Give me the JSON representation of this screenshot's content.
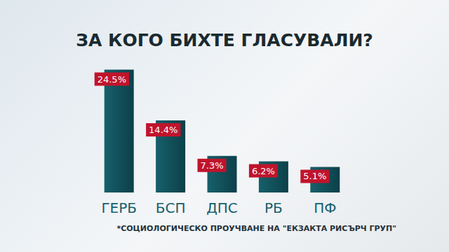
{
  "chart_data": {
    "type": "bar",
    "title": "ЗА КОГО БИХТЕ ГЛАСУВАЛИ?",
    "annotation": "*СОЦИОЛОГИЧЕСКО ПРОУЧВАНЕ НА \"ЕКЗАКТА РИСЪРЧ ГРУП\"",
    "categories": [
      "ГЕРБ",
      "БСП",
      "ДПС",
      "РБ",
      "ПФ"
    ],
    "values": [
      24.5,
      14.4,
      7.3,
      6.2,
      5.1
    ],
    "value_labels": [
      "24.5%",
      "14.4%",
      "7.3%",
      "6.2%",
      "5.1%"
    ],
    "color": "#17606b",
    "ylim": [
      0,
      25
    ],
    "data_labels": true,
    "tick_labels": "x",
    "grid": false
  }
}
